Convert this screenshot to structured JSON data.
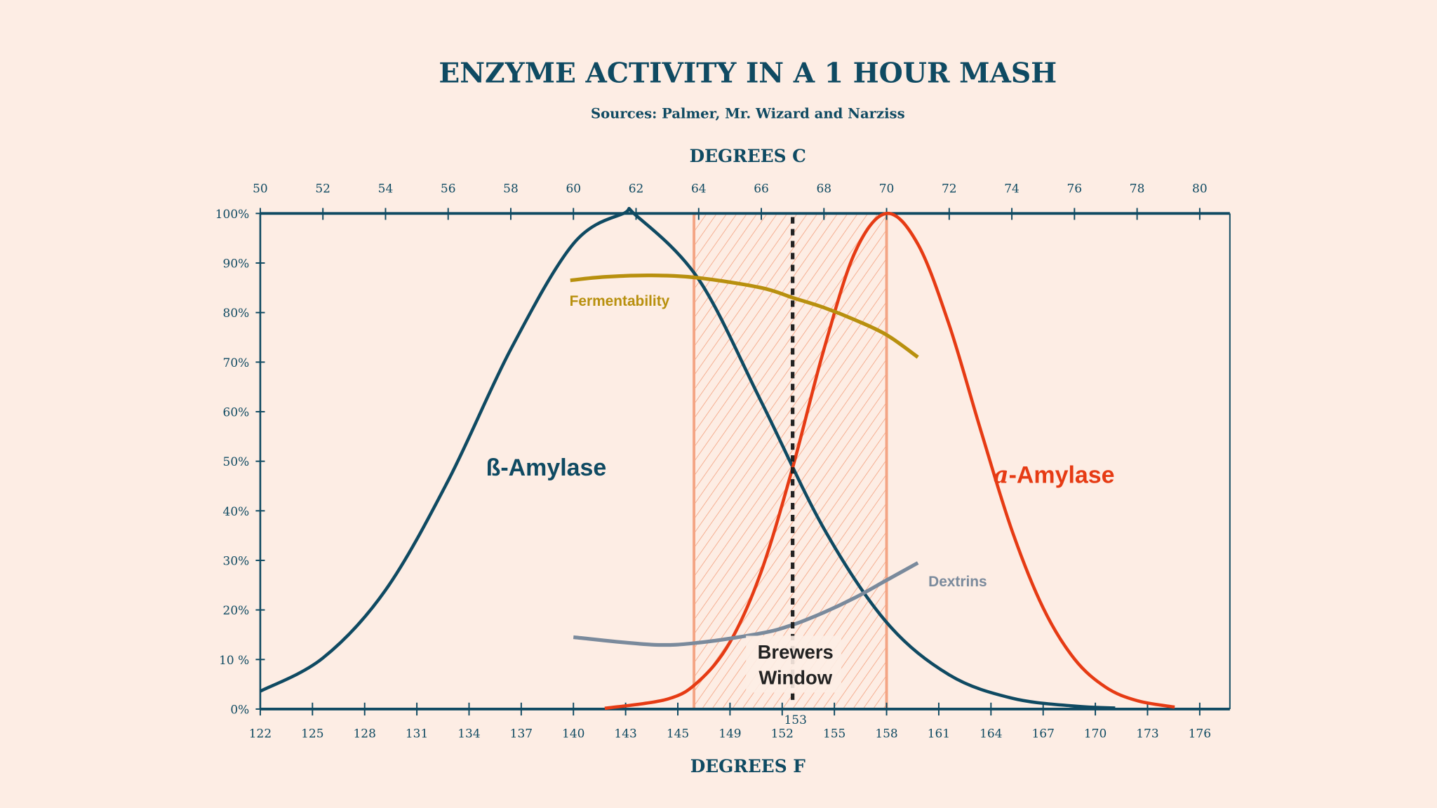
{
  "chart_data": {
    "type": "line",
    "title": "ENZYME ACTIVITY IN A 1 HOUR MASH",
    "subtitle": "Sources: Palmer, Mr. Wizard and Narziss",
    "xlabel_top": "DEGREES C",
    "xlabel_bottom": "DEGREES F",
    "xlim_c": [
      50,
      81
    ],
    "ylim": [
      0,
      100
    ],
    "grid": false,
    "x_ticks_c": [
      "50",
      "52",
      "54",
      "56",
      "58",
      "60",
      "62",
      "64",
      "66",
      "68",
      "70",
      "72",
      "74",
      "76",
      "78",
      "80"
    ],
    "x_ticks_f": [
      "122",
      "125",
      "128",
      "131",
      "134",
      "137",
      "140",
      "143",
      "145",
      "149",
      "152",
      "155",
      "158",
      "161",
      "164",
      "167",
      "170",
      "173",
      "176"
    ],
    "y_ticks": [
      "0%",
      "10 %",
      "20%",
      "30%",
      "40%",
      "50%",
      "60%",
      "70%",
      "80%",
      "90%",
      "100%"
    ],
    "series": [
      {
        "name": "ß-Amylase",
        "color": "#0f4a62",
        "x": [
          50,
          52,
          54,
          56,
          58,
          60,
          61.6,
          62,
          64,
          66,
          68,
          70,
          72,
          74,
          76,
          77.3
        ],
        "y": [
          3.6,
          10.3,
          24,
          46.1,
          72.6,
          93.9,
          100,
          99.6,
          86.7,
          62,
          36.4,
          17.5,
          6.9,
          2.2,
          0.6,
          0.2
        ]
      },
      {
        "name_prefix": "a",
        "name": "-Amylase",
        "color": "#e63b14",
        "x": [
          61,
          63,
          64,
          65,
          66,
          67,
          68,
          69,
          70,
          71,
          72,
          73,
          74,
          75,
          76,
          77,
          78,
          79.2
        ],
        "y": [
          0.15,
          2,
          5.6,
          13.5,
          27.8,
          48.7,
          72.6,
          92.3,
          100,
          93.8,
          77.5,
          56.4,
          36.1,
          20.4,
          10.1,
          4.4,
          1.7,
          0.4
        ]
      },
      {
        "name": "Fermentability",
        "color": "#b8900e",
        "x": [
          59.9,
          61,
          62.5,
          64,
          66,
          67,
          68,
          69,
          70,
          71
        ],
        "y": [
          86.5,
          87.2,
          87.5,
          87,
          85,
          83,
          81,
          78.5,
          75.5,
          71
        ]
      },
      {
        "name": "Dextrins",
        "color": "#7a8a9c",
        "x": [
          60,
          62.5,
          64,
          66,
          67,
          68,
          69,
          70,
          71
        ],
        "y": [
          14.5,
          13,
          13.4,
          15.3,
          17,
          19.5,
          22.5,
          26,
          29.5
        ]
      }
    ],
    "annotations": {
      "window_label_1": "Brewers",
      "window_label_2": "Window",
      "window_range_c": [
        63.85,
        70
      ],
      "marker_c": 67,
      "marker_label": "153"
    },
    "colors": {
      "background": "#fdede4",
      "axis": "#0f4a62",
      "window": "#f4a584",
      "marker": "#222222"
    }
  }
}
